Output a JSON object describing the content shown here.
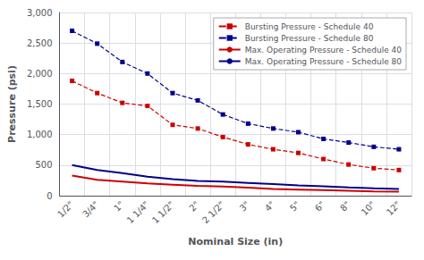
{
  "chart_data": {
    "type": "line",
    "x_label": "Nominal Size (in)",
    "y_label": "Pressure (psi)",
    "categories": [
      "1/2\"",
      "3/4\"",
      "1\"",
      "1 1/4\"",
      "1 1/2\"",
      "2\"",
      "2 1/2\"",
      "3\"",
      "4\"",
      "5\"",
      "6\"",
      "8\"",
      "10\"",
      "12\""
    ],
    "series": [
      {
        "name": "Bursting Pressure - Schedule 40",
        "color": "#cc0000",
        "line_style": "dashed",
        "marker": "square",
        "values": [
          1880,
          1680,
          1520,
          1470,
          1160,
          1100,
          960,
          840,
          760,
          700,
          600,
          510,
          450,
          420
        ]
      },
      {
        "name": "Bursting Pressure - Schedule 80",
        "color": "#00008b",
        "line_style": "dashed",
        "marker": "square",
        "values": [
          2700,
          2490,
          2190,
          2000,
          1680,
          1560,
          1330,
          1180,
          1100,
          1040,
          930,
          870,
          800,
          760
        ]
      },
      {
        "name": "Max. Operating Pressure - Schedule 40",
        "color": "#cc0000",
        "line_style": "solid",
        "marker": "none",
        "values": [
          330,
          260,
          230,
          200,
          180,
          160,
          150,
          130,
          110,
          100,
          90,
          80,
          70,
          65
        ]
      },
      {
        "name": "Max. Operating Pressure - Schedule 80",
        "color": "#00008b",
        "line_style": "solid",
        "marker": "none",
        "values": [
          500,
          420,
          370,
          310,
          270,
          240,
          230,
          210,
          190,
          170,
          155,
          135,
          120,
          110
        ]
      }
    ],
    "ylim": [
      0,
      3000
    ],
    "yticks": [
      0,
      500,
      1000,
      1500,
      2000,
      2500,
      3000
    ],
    "grid": true,
    "legend": "upper right"
  }
}
